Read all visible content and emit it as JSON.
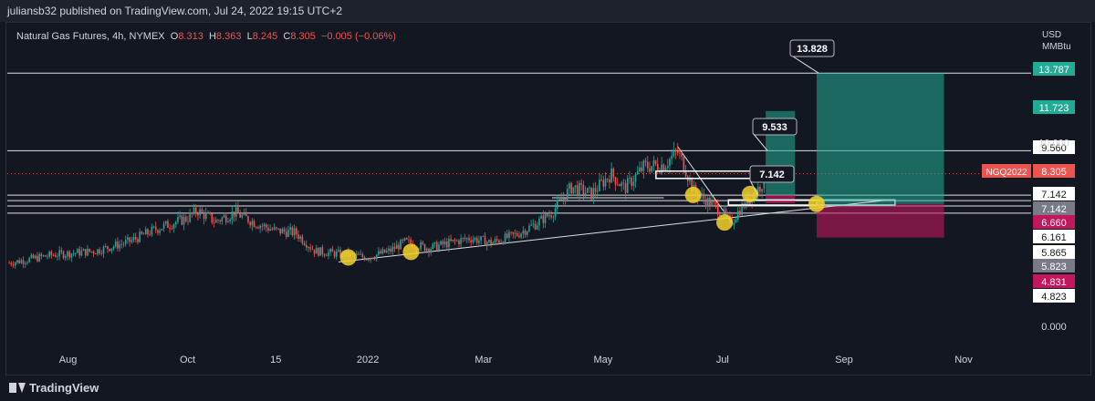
{
  "header": {
    "publisher_line": "juliansb32 published on TradingView.com, Jul 24, 2022 19:15 UTC+2"
  },
  "legend": {
    "symbol_line": "Natural Gas Futures, 4h, NYMEX",
    "o_label": "O",
    "o_value": "8.313",
    "h_label": "H",
    "h_value": "8.363",
    "l_label": "L",
    "l_value": "8.245",
    "c_label": "C",
    "c_value": "8.305",
    "change": "−0.005 (−0.06%)"
  },
  "price_axis": {
    "currency": "USD",
    "unit": "MMBtu"
  },
  "footer": {
    "brand": "TradingView"
  },
  "colors": {
    "background": "#131722",
    "up": "#26a69a",
    "down": "#ef5350",
    "target_zone": "#22ab94",
    "stop_zone": "#c2185b",
    "marker": "#f5d22a"
  },
  "chart_data": {
    "type": "candlestick",
    "symbol": "NGQ2022",
    "timeframe": "4h",
    "x_tick_labels": [
      "Aug",
      "Oct",
      "15",
      "2022",
      "Mar",
      "May",
      "Jul",
      "Sep",
      "Nov"
    ],
    "y_visible_ticks": [
      "10.000",
      "0.000"
    ],
    "ylim": [
      0,
      14.5
    ],
    "price_path": [
      {
        "t": "2021-07-02",
        "p": 3.45
      },
      {
        "t": "2021-07-25",
        "p": 3.9
      },
      {
        "t": "2021-08-15",
        "p": 4.1
      },
      {
        "t": "2021-09-01",
        "p": 4.6
      },
      {
        "t": "2021-09-15",
        "p": 5.3
      },
      {
        "t": "2021-10-01",
        "p": 5.9
      },
      {
        "t": "2021-10-06",
        "p": 6.3
      },
      {
        "t": "2021-10-15",
        "p": 5.7
      },
      {
        "t": "2021-10-25",
        "p": 6.2
      },
      {
        "t": "2021-11-05",
        "p": 5.6
      },
      {
        "t": "2021-11-15",
        "p": 5.2
      },
      {
        "t": "2021-11-25",
        "p": 5.1
      },
      {
        "t": "2021-12-05",
        "p": 4.1
      },
      {
        "t": "2021-12-20",
        "p": 3.9
      },
      {
        "t": "2022-01-01",
        "p": 3.75
      },
      {
        "t": "2022-01-12",
        "p": 4.1
      },
      {
        "t": "2022-01-20",
        "p": 4.6
      },
      {
        "t": "2022-02-01",
        "p": 4.25
      },
      {
        "t": "2022-02-10",
        "p": 4.5
      },
      {
        "t": "2022-02-22",
        "p": 4.8
      },
      {
        "t": "2022-03-05",
        "p": 4.55
      },
      {
        "t": "2022-03-18",
        "p": 5.0
      },
      {
        "t": "2022-03-28",
        "p": 5.6
      },
      {
        "t": "2022-04-05",
        "p": 6.2
      },
      {
        "t": "2022-04-15",
        "p": 7.6
      },
      {
        "t": "2022-04-25",
        "p": 7.2
      },
      {
        "t": "2022-05-05",
        "p": 8.3
      },
      {
        "t": "2022-05-12",
        "p": 7.5
      },
      {
        "t": "2022-05-22",
        "p": 8.7
      },
      {
        "t": "2022-06-01",
        "p": 8.8
      },
      {
        "t": "2022-06-08",
        "p": 9.5
      },
      {
        "t": "2022-06-12",
        "p": 8.6
      },
      {
        "t": "2022-06-16",
        "p": 7.4
      },
      {
        "t": "2022-06-22",
        "p": 6.9
      },
      {
        "t": "2022-06-30",
        "p": 6.3
      },
      {
        "t": "2022-07-05",
        "p": 5.6
      },
      {
        "t": "2022-07-10",
        "p": 6.4
      },
      {
        "t": "2022-07-15",
        "p": 7.0
      },
      {
        "t": "2022-07-20",
        "p": 7.6
      },
      {
        "t": "2022-07-24",
        "p": 8.305
      }
    ],
    "horizontal_levels": [
      {
        "price": 13.787,
        "label": "13.787",
        "badge": "teal"
      },
      {
        "price": 11.723,
        "label": "11.723",
        "badge": "teal"
      },
      {
        "price": 9.56,
        "label": "9.560",
        "badge": "white"
      },
      {
        "price": 8.305,
        "label": "8.305",
        "badge": "red",
        "tag": "NGQ2022"
      },
      {
        "price": 7.142,
        "label": "7.142",
        "badge": "white"
      },
      {
        "price": 7.142,
        "label": "7.142",
        "badge": "gray"
      },
      {
        "price": 6.66,
        "label": "6.660",
        "badge": "magenta"
      },
      {
        "price": 6.161,
        "label": "6.161",
        "badge": "white"
      },
      {
        "price": 5.865,
        "label": "5.865",
        "badge": "white"
      },
      {
        "price": 5.823,
        "label": "5.823",
        "badge": "gray"
      },
      {
        "price": 4.831,
        "label": "4.831",
        "badge": "magenta"
      },
      {
        "price": 4.823,
        "label": "4.823",
        "badge": "white"
      }
    ],
    "callouts": [
      {
        "label": "13.828",
        "price": 13.828
      },
      {
        "label": "9.533",
        "price": 9.533
      },
      {
        "label": "7.142",
        "price": 7.142
      }
    ],
    "long_position": {
      "entry": 6.66,
      "target": 13.787,
      "stop": 4.831
    },
    "markers": [
      {
        "t": "2021-12-22",
        "p": 3.75
      },
      {
        "t": "2022-01-23",
        "p": 4.05
      },
      {
        "t": "2022-06-16",
        "p": 7.15
      },
      {
        "t": "2022-07-02",
        "p": 5.65
      },
      {
        "t": "2022-07-15",
        "p": 7.2
      },
      {
        "t": "2022-08-18",
        "p": 6.66
      }
    ]
  }
}
